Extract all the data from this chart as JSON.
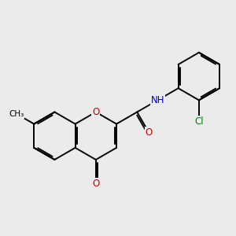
{
  "background_color": "#ebebeb",
  "bond_color": "#000000",
  "bond_width": 1.4,
  "atom_colors": {
    "O": "#cc0000",
    "N": "#0000cc",
    "Cl": "#008800",
    "C": "#000000"
  },
  "font_size": 8.5,
  "fig_size": [
    3.0,
    3.0
  ],
  "dpi": 100
}
